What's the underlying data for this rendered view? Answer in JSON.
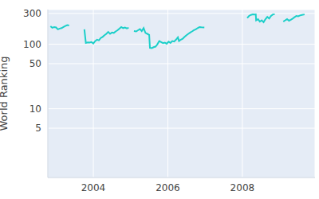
{
  "chart_data": {
    "type": "line",
    "y_label": "World Ranking",
    "color": "#1ccfc9",
    "log": "y",
    "grid": true,
    "xlim": [
      2002.78,
      2009.95
    ],
    "xticks": [
      2004,
      2006,
      2008
    ],
    "ylim": [
      0.86,
      345
    ],
    "yticks": [
      5,
      10,
      50,
      100,
      300
    ],
    "x": [
      2002.85,
      2002.9,
      2002.95,
      2003.0,
      2003.05,
      2003.1,
      2003.15,
      2003.2,
      2003.25,
      2003.3,
      2003.35,
      2003.55,
      2003.76,
      2003.8,
      2003.85,
      2003.9,
      2003.95,
      2004.0,
      2004.05,
      2004.1,
      2004.15,
      2004.2,
      2004.25,
      2004.3,
      2004.35,
      2004.4,
      2004.45,
      2004.5,
      2004.55,
      2004.6,
      2004.65,
      2004.7,
      2004.75,
      2004.8,
      2004.85,
      2004.9,
      2004.95,
      2005.04,
      2005.09,
      2005.15,
      2005.2,
      2005.25,
      2005.3,
      2005.35,
      2005.4,
      2005.45,
      2005.5,
      2005.52,
      2005.57,
      2005.62,
      2005.67,
      2005.72,
      2005.77,
      2005.82,
      2005.87,
      2005.92,
      2005.97,
      2006.02,
      2006.07,
      2006.12,
      2006.17,
      2006.22,
      2006.27,
      2006.3,
      2006.35,
      2006.4,
      2006.45,
      2006.5,
      2006.55,
      2006.6,
      2006.65,
      2006.7,
      2006.75,
      2006.8,
      2006.85,
      2006.9,
      2006.98,
      2007.5,
      2008.13,
      2008.18,
      2008.23,
      2008.28,
      2008.33,
      2008.36,
      2008.37,
      2008.42,
      2008.47,
      2008.52,
      2008.57,
      2008.62,
      2008.67,
      2008.72,
      2008.77,
      2008.82,
      2008.87,
      2008.98,
      2009.1,
      2009.15,
      2009.2,
      2009.25,
      2009.3,
      2009.35,
      2009.4,
      2009.45,
      2009.5,
      2009.55,
      2009.6,
      2009.67
    ],
    "values": [
      190,
      180,
      185,
      182,
      170,
      175,
      178,
      185,
      192,
      198,
      195,
      null,
      170,
      105,
      107,
      106,
      108,
      103,
      112,
      118,
      115,
      125,
      130,
      138,
      145,
      155,
      145,
      152,
      150,
      158,
      165,
      175,
      185,
      178,
      182,
      176,
      180,
      null,
      160,
      158,
      165,
      172,
      160,
      178,
      150,
      145,
      140,
      88,
      87,
      90,
      92,
      100,
      112,
      108,
      104,
      106,
      102,
      110,
      105,
      112,
      110,
      118,
      128,
      112,
      118,
      122,
      130,
      138,
      145,
      152,
      158,
      165,
      170,
      178,
      185,
      183,
      182,
      null,
      255,
      275,
      285,
      290,
      288,
      290,
      235,
      245,
      225,
      235,
      220,
      245,
      265,
      250,
      275,
      290,
      292,
      null,
      225,
      235,
      245,
      232,
      240,
      250,
      262,
      275,
      272,
      280,
      285,
      290
    ]
  }
}
